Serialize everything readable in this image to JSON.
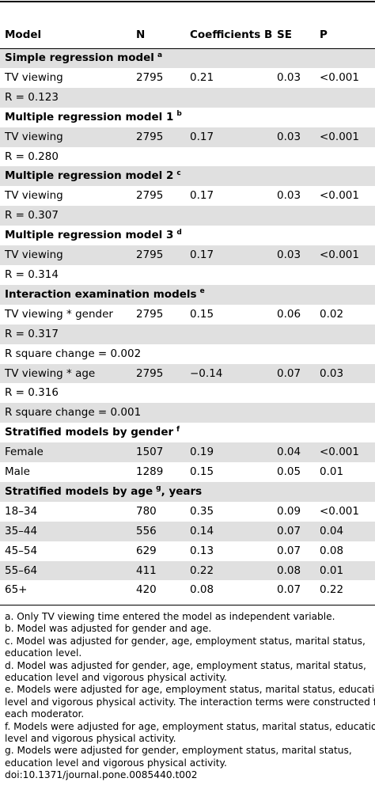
{
  "header": {
    "model": "Model",
    "n": "N",
    "coef": "Coefficients B",
    "se": "SE",
    "p": "P"
  },
  "rows": [
    {
      "type": "section",
      "label": "Simple regression model",
      "sup": "a"
    },
    {
      "type": "data",
      "model": "TV viewing",
      "n": "2795",
      "coef": "0.21",
      "se": "0.03",
      "p": "<0.001"
    },
    {
      "type": "note",
      "label": "R = 0.123"
    },
    {
      "type": "section",
      "label": "Multiple regression model 1",
      "sup": "b"
    },
    {
      "type": "data",
      "model": "TV viewing",
      "n": "2795",
      "coef": "0.17",
      "se": "0.03",
      "p": "<0.001"
    },
    {
      "type": "note",
      "label": "R = 0.280"
    },
    {
      "type": "section",
      "label": "Multiple regression model 2",
      "sup": "c"
    },
    {
      "type": "data",
      "model": "TV viewing",
      "n": "2795",
      "coef": "0.17",
      "se": "0.03",
      "p": "<0.001"
    },
    {
      "type": "note",
      "label": "R = 0.307"
    },
    {
      "type": "section",
      "label": "Multiple regression model 3",
      "sup": "d"
    },
    {
      "type": "data",
      "model": "TV viewing",
      "n": "2795",
      "coef": "0.17",
      "se": "0.03",
      "p": "<0.001"
    },
    {
      "type": "note",
      "label": "R = 0.314"
    },
    {
      "type": "section",
      "label": "Interaction examination models",
      "sup": "e"
    },
    {
      "type": "data",
      "model": "TV viewing * gender",
      "n": "2795",
      "coef": "0.15",
      "se": "0.06",
      "p": "0.02"
    },
    {
      "type": "note",
      "label": "R = 0.317"
    },
    {
      "type": "note",
      "label": "R square change = 0.002"
    },
    {
      "type": "data",
      "model": "TV viewing * age",
      "n": "2795",
      "coef": "−0.14",
      "se": "0.07",
      "p": "0.03"
    },
    {
      "type": "note",
      "label": "R = 0.316"
    },
    {
      "type": "note",
      "label": "R square change = 0.001"
    },
    {
      "type": "section",
      "label": "Stratified models by gender",
      "sup": "f"
    },
    {
      "type": "data",
      "model": "Female",
      "n": "1507",
      "coef": "0.19",
      "se": "0.04",
      "p": "<0.001"
    },
    {
      "type": "data",
      "model": "Male",
      "n": "1289",
      "coef": "0.15",
      "se": "0.05",
      "p": "0.01"
    },
    {
      "type": "section",
      "label": "Stratified models by age",
      "sup": "g",
      "suffix": ", years"
    },
    {
      "type": "data",
      "model": "18–34",
      "n": "780",
      "coef": "0.35",
      "se": "0.09",
      "p": "<0.001"
    },
    {
      "type": "data",
      "model": "35–44",
      "n": "556",
      "coef": "0.14",
      "se": "0.07",
      "p": "0.04"
    },
    {
      "type": "data",
      "model": "45–54",
      "n": "629",
      "coef": "0.13",
      "se": "0.07",
      "p": "0.08"
    },
    {
      "type": "data",
      "model": "55–64",
      "n": "411",
      "coef": "0.22",
      "se": "0.08",
      "p": "0.01"
    },
    {
      "type": "data",
      "model": "65+",
      "n": "420",
      "coef": "0.08",
      "se": "0.07",
      "p": "0.22"
    }
  ],
  "footnotes": [
    "a. Only TV viewing time entered the model as independent variable.",
    "b. Model was adjusted for gender and age.",
    "c. Model was adjusted for gender, age, employment status, marital status,",
    "education level.",
    "d. Model was adjusted for gender, age, employment status, marital status,",
    "education level and vigorous physical activity.",
    "e. Models were adjusted for age, employment status, marital status, education",
    "level and vigorous physical activity. The interaction terms were constructed for",
    "each moderator.",
    "f. Models were adjusted for age, employment status, marital status, education",
    "level and vigorous physical activity.",
    "g. Models were adjusted for gender, employment status, marital status,",
    "education level and vigorous physical activity."
  ],
  "doi": "doi:10.1371/journal.pone.0085440.t002"
}
